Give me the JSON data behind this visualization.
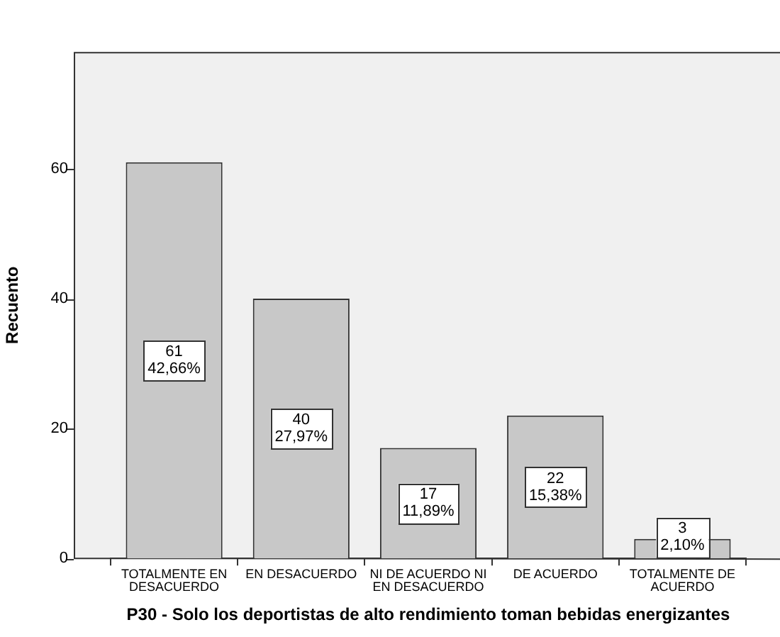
{
  "chart_data": {
    "type": "bar",
    "xlabel": "P30 - Solo los deportistas de alto rendimiento toman bebidas energizantes",
    "ylabel": "Recuento",
    "categories": [
      "TOTALMENTE EN DESACUERDO",
      "EN DESACUERDO",
      "NI DE ACUERDO NI EN DESACUERDO",
      "DE ACUERDO",
      "TOTALMENTE DE ACUERDO"
    ],
    "values": [
      61,
      40,
      17,
      22,
      3
    ],
    "value_labels": [
      "61 42,66%",
      "40 27,97%",
      "17 11,89%",
      "22 15,38%",
      "3 2,10%"
    ],
    "color": "#c8c8c8",
    "ylim": [
      0,
      78
    ],
    "yticks": [
      0,
      20,
      40,
      60
    ],
    "grid": false,
    "legend": false
  }
}
